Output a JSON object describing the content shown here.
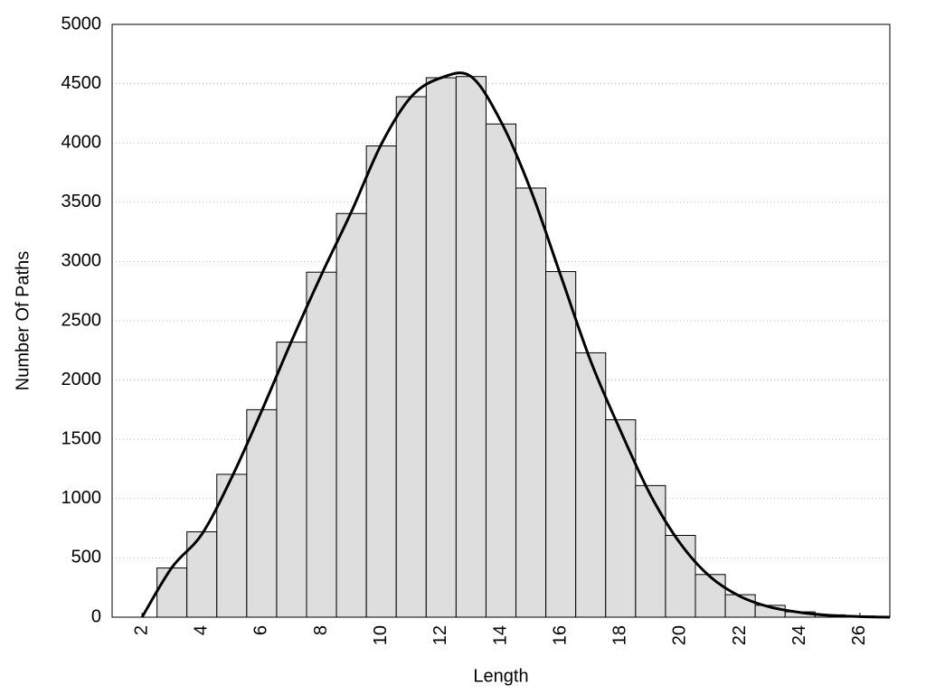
{
  "chart_data": {
    "type": "histogram",
    "xlabel": "Length",
    "ylabel": "Number Of Paths",
    "bins": [
      2.5,
      3.5,
      4.5,
      5.5,
      6.5,
      7.5,
      8.5,
      9.5,
      10.5,
      11.5,
      12.5,
      13.5,
      14.5,
      15.5,
      16.5,
      17.5,
      18.5,
      19.5,
      20.5,
      21.5,
      22.5,
      23.5,
      24.5,
      25.5,
      26.5
    ],
    "values": [
      415,
      720,
      1205,
      1750,
      2320,
      2910,
      3405,
      3975,
      4390,
      4550,
      4560,
      4160,
      3620,
      2915,
      2230,
      1665,
      1110,
      690,
      360,
      190,
      100,
      45,
      20,
      10
    ],
    "color": "#dedede",
    "curve": {
      "color": "#000000",
      "x": [
        2,
        3,
        4,
        5,
        6,
        7,
        8,
        9,
        10,
        11,
        12,
        13,
        14,
        15,
        16,
        17,
        18,
        19,
        20,
        21,
        22,
        23,
        24,
        25,
        26,
        27
      ],
      "values": [
        0,
        420,
        700,
        1180,
        1740,
        2330,
        2890,
        3420,
        3990,
        4390,
        4550,
        4560,
        4180,
        3600,
        2880,
        2160,
        1570,
        1030,
        620,
        340,
        175,
        85,
        40,
        15,
        5,
        0
      ]
    },
    "xlim": [
      1,
      27
    ],
    "ylim": [
      0,
      5000
    ],
    "xticks": [
      2,
      4,
      6,
      8,
      10,
      12,
      14,
      16,
      18,
      20,
      22,
      24,
      26
    ],
    "yticks": [
      0,
      500,
      1000,
      1500,
      2000,
      2500,
      3000,
      3500,
      4000,
      4500,
      5000
    ],
    "grid": true
  }
}
